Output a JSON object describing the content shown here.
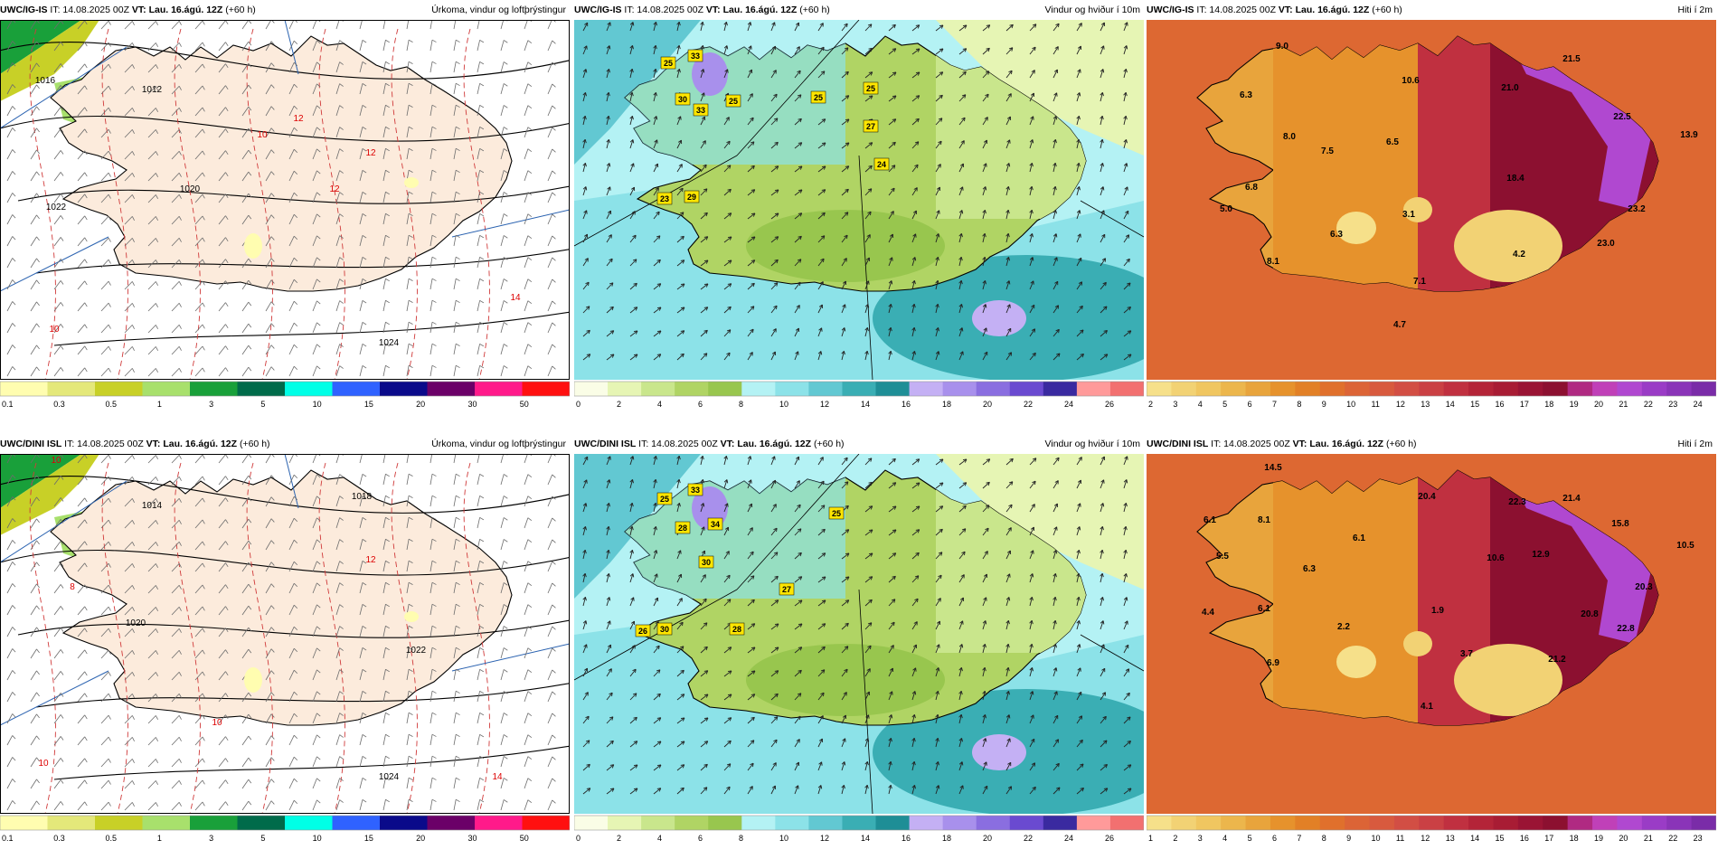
{
  "panels": [
    {
      "id": "p1",
      "model": "UWC/IG-IS",
      "it": "IT: 14.08.2025 00Z",
      "vt": "VT: Lau. 16.ágú. 12Z",
      "lead": "(+60 h)",
      "title": "Úrkoma, vindur og loftþrýstingur",
      "type": "precip",
      "value_labels": [
        {
          "text": "1012",
          "color": "#000"
        },
        {
          "text": "1016",
          "color": "#000"
        },
        {
          "text": "1020",
          "color": "#000"
        },
        {
          "text": "1022",
          "color": "#000"
        },
        {
          "text": "1024",
          "color": "#000"
        },
        {
          "text": "10",
          "color": "#d00"
        },
        {
          "text": "12",
          "color": "#d00"
        },
        {
          "text": "12",
          "color": "#d00"
        },
        {
          "text": "12",
          "color": "#d00"
        },
        {
          "text": "14",
          "color": "#d00"
        },
        {
          "text": "10",
          "color": "#d00"
        }
      ],
      "legend_ticks": [
        "0.1",
        "0.3",
        "0.5",
        "1",
        "3",
        "5",
        "10",
        "15",
        "20",
        "30",
        "50"
      ]
    },
    {
      "id": "p2",
      "model": "UWC/IG-IS",
      "it": "IT: 14.08.2025 00Z",
      "vt": "VT: Lau. 16.ágú. 12Z",
      "lead": "(+60 h)",
      "title": "Vindur og hviður í 10m",
      "type": "wind",
      "value_labels": [
        {
          "text": "25"
        },
        {
          "text": "33"
        },
        {
          "text": "30"
        },
        {
          "text": "33"
        },
        {
          "text": "25"
        },
        {
          "text": "25"
        },
        {
          "text": "25"
        },
        {
          "text": "27"
        },
        {
          "text": "24"
        },
        {
          "text": "23"
        },
        {
          "text": "29"
        }
      ],
      "legend_ticks": [
        "0",
        "2",
        "4",
        "6",
        "8",
        "10",
        "12",
        "14",
        "16",
        "18",
        "20",
        "22",
        "24",
        "26"
      ]
    },
    {
      "id": "p3",
      "model": "UWC/IG-IS",
      "it": "IT: 14.08.2025 00Z",
      "vt": "VT: Lau. 16.ágú. 12Z",
      "lead": "(+60 h)",
      "title": "Hiti í 2m",
      "type": "temp",
      "value_labels": [
        {
          "text": "9.0"
        },
        {
          "text": "6.3"
        },
        {
          "text": "8.0"
        },
        {
          "text": "7.5"
        },
        {
          "text": "6.5"
        },
        {
          "text": "10.6"
        },
        {
          "text": "21.0"
        },
        {
          "text": "21.5"
        },
        {
          "text": "22.5"
        },
        {
          "text": "13.9"
        },
        {
          "text": "18.4"
        },
        {
          "text": "23.2"
        },
        {
          "text": "6.8"
        },
        {
          "text": "5.0"
        },
        {
          "text": "3.1"
        },
        {
          "text": "6.3"
        },
        {
          "text": "4.2"
        },
        {
          "text": "23.0"
        },
        {
          "text": "8.1"
        },
        {
          "text": "7.1"
        },
        {
          "text": "4.7"
        }
      ],
      "legend_ticks": [
        "2",
        "3",
        "4",
        "5",
        "6",
        "7",
        "8",
        "9",
        "10",
        "11",
        "12",
        "13",
        "14",
        "15",
        "16",
        "17",
        "18",
        "19",
        "20",
        "21",
        "22",
        "23",
        "24"
      ]
    },
    {
      "id": "p4",
      "model": "UWC/DINI ISL",
      "it": "IT: 14.08.2025 00Z",
      "vt": "VT: Lau. 16.ágú. 12Z",
      "lead": "(+60 h)",
      "title": "Úrkoma, vindur og loftþrýstingur",
      "type": "precip",
      "value_labels": [
        {
          "text": "1014",
          "color": "#000"
        },
        {
          "text": "1018",
          "color": "#000"
        },
        {
          "text": "1020",
          "color": "#000"
        },
        {
          "text": "1022",
          "color": "#000"
        },
        {
          "text": "1024",
          "color": "#000"
        },
        {
          "text": "10",
          "color": "#d00"
        },
        {
          "text": "10",
          "color": "#d00"
        },
        {
          "text": "12",
          "color": "#d00"
        },
        {
          "text": "8",
          "color": "#d00"
        },
        {
          "text": "14",
          "color": "#d00"
        },
        {
          "text": "10",
          "color": "#d00"
        }
      ],
      "legend_ticks": [
        "0.1",
        "0.3",
        "0.5",
        "1",
        "3",
        "5",
        "10",
        "15",
        "20",
        "30",
        "50"
      ]
    },
    {
      "id": "p5",
      "model": "UWC/DINI ISL",
      "it": "IT: 14.08.2025 00Z",
      "vt": "VT: Lau. 16.ágú. 12Z",
      "lead": "(+60 h)",
      "title": "Vindur og hviður í 10m",
      "type": "wind",
      "value_labels": [
        {
          "text": "25"
        },
        {
          "text": "33"
        },
        {
          "text": "28"
        },
        {
          "text": "34"
        },
        {
          "text": "30"
        },
        {
          "text": "25"
        },
        {
          "text": "27"
        },
        {
          "text": "26"
        },
        {
          "text": "30"
        },
        {
          "text": "28"
        }
      ],
      "legend_ticks": [
        "0",
        "2",
        "4",
        "6",
        "8",
        "10",
        "12",
        "14",
        "16",
        "18",
        "20",
        "22",
        "24",
        "26"
      ]
    },
    {
      "id": "p6",
      "model": "UWC/DINI ISL",
      "it": "IT: 14.08.2025 00Z",
      "vt": "VT: Lau. 16.ágú. 12Z",
      "lead": "(+60 h)",
      "title": "Hiti í 2m",
      "type": "temp",
      "value_labels": [
        {
          "text": "14.5"
        },
        {
          "text": "6.1"
        },
        {
          "text": "8.1"
        },
        {
          "text": "5.5"
        },
        {
          "text": "6.3"
        },
        {
          "text": "6.1"
        },
        {
          "text": "20.4"
        },
        {
          "text": "22.3"
        },
        {
          "text": "21.4"
        },
        {
          "text": "15.8"
        },
        {
          "text": "10.5"
        },
        {
          "text": "10.6"
        },
        {
          "text": "12.9"
        },
        {
          "text": "20.3"
        },
        {
          "text": "4.4"
        },
        {
          "text": "6.1"
        },
        {
          "text": "2.2"
        },
        {
          "text": "1.9"
        },
        {
          "text": "20.8"
        },
        {
          "text": "22.8"
        },
        {
          "text": "3.7"
        },
        {
          "text": "21.2"
        },
        {
          "text": "6.9"
        },
        {
          "text": "4.1"
        }
      ],
      "legend_ticks": [
        "1",
        "2",
        "3",
        "4",
        "5",
        "6",
        "7",
        "8",
        "9",
        "10",
        "11",
        "12",
        "13",
        "14",
        "15",
        "16",
        "17",
        "18",
        "19",
        "20",
        "21",
        "22",
        "23"
      ]
    }
  ],
  "palettes": {
    "precip": [
      "#fffdb0",
      "#e4e87a",
      "#c8d027",
      "#a8e06c",
      "#19a03a",
      "#006b4a",
      "#00ffe6",
      "#2f62ff",
      "#0a0a8a",
      "#6b0068",
      "#ff1a8a",
      "#ff1010"
    ],
    "wind": [
      "#fafde6",
      "#e6f5b4",
      "#c9e68c",
      "#b0d464",
      "#98c64e",
      "#b4f2f4",
      "#8ce2e8",
      "#62c8d2",
      "#3aaeb4",
      "#1e8e96",
      "#c4b0f4",
      "#a890ec",
      "#8a6ee0",
      "#6a4ad0",
      "#3a2aa0",
      "#ff9a9a",
      "#f27070"
    ],
    "temp": [
      "#f6e08a",
      "#f2d274",
      "#f0c660",
      "#ecb64c",
      "#e8a43c",
      "#e6922c",
      "#e28026",
      "#e0702c",
      "#dc6436",
      "#d85a3e",
      "#d24e44",
      "#ca4044",
      "#c03040",
      "#b42438",
      "#a81c34",
      "#9a1434",
      "#8c1030",
      "#b02a82",
      "#c040b8",
      "#b048d0",
      "#9a3cc6",
      "#8a34b8",
      "#7a2ca8"
    ]
  }
}
